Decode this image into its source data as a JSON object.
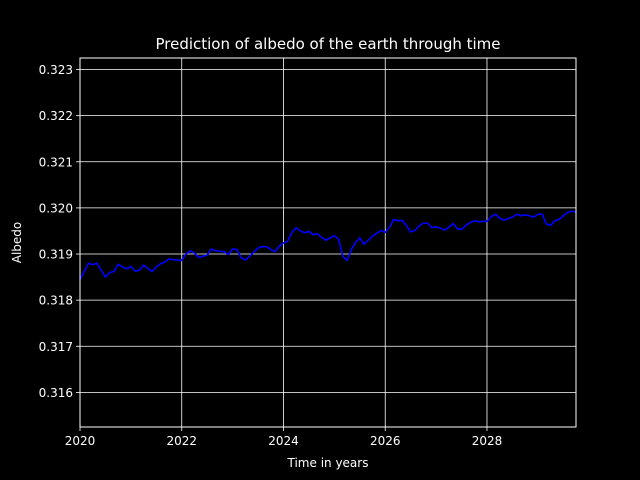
{
  "chart_data": {
    "type": "line",
    "title": "Prediction of albedo of the earth through time",
    "xlabel": "Time in years",
    "ylabel": "Albedo",
    "xlim": [
      2020,
      2029.75
    ],
    "ylim": [
      0.31525,
      0.32325
    ],
    "x_ticks": [
      2020,
      2022,
      2024,
      2026,
      2028
    ],
    "x_tick_labels": [
      "2020",
      "2022",
      "2024",
      "2026",
      "2028"
    ],
    "y_ticks": [
      0.316,
      0.317,
      0.318,
      0.319,
      0.32,
      0.321,
      0.322,
      0.323
    ],
    "y_tick_labels": [
      "0.316",
      "0.317",
      "0.318",
      "0.319",
      "0.320",
      "0.321",
      "0.322",
      "0.323"
    ],
    "grid": true,
    "background_color": "#000000",
    "line_color": "#0000ff",
    "series": [
      {
        "x": [
          2020.0,
          2020.083,
          2020.167,
          2020.25,
          2020.333,
          2020.417,
          2020.5,
          2020.583,
          2020.667,
          2020.75,
          2020.833,
          2020.917,
          2021.0,
          2021.083,
          2021.167,
          2021.25,
          2021.333,
          2021.417,
          2021.5,
          2021.583,
          2021.667,
          2021.75,
          2021.833,
          2021.917,
          2022.0,
          2022.083,
          2022.167,
          2022.25,
          2022.333,
          2022.417,
          2022.5,
          2022.583,
          2022.667,
          2022.75,
          2022.833,
          2022.917,
          2023.0,
          2023.083,
          2023.167,
          2023.25,
          2023.333,
          2023.417,
          2023.5,
          2023.583,
          2023.667,
          2023.75,
          2023.833,
          2023.917,
          2024.0,
          2024.083,
          2024.167,
          2024.25,
          2024.333,
          2024.417,
          2024.5,
          2024.583,
          2024.667,
          2024.75,
          2024.833,
          2024.917,
          2025.0,
          2025.083,
          2025.167,
          2025.25,
          2025.333,
          2025.417,
          2025.5,
          2025.583,
          2025.667,
          2025.75,
          2025.833,
          2025.917,
          2026.0,
          2026.083,
          2026.167,
          2026.25,
          2026.333,
          2026.417,
          2026.5,
          2026.583,
          2026.667,
          2026.75,
          2026.833,
          2026.917,
          2027.0,
          2027.083,
          2027.167,
          2027.25,
          2027.333,
          2027.417,
          2027.5,
          2027.583,
          2027.667,
          2027.75,
          2027.833,
          2027.917,
          2028.0,
          2028.083,
          2028.167,
          2028.25,
          2028.333,
          2028.417,
          2028.5,
          2028.583,
          2028.667,
          2028.75,
          2028.833,
          2028.917,
          2029.0,
          2029.083,
          2029.167,
          2029.25,
          2029.333,
          2029.417,
          2029.5,
          2029.583,
          2029.667,
          2029.75
        ],
        "values": [
          0.31845,
          0.31862,
          0.3188,
          0.31877,
          0.3188,
          0.31865,
          0.3185,
          0.3186,
          0.31862,
          0.31878,
          0.31872,
          0.31868,
          0.31873,
          0.31863,
          0.31865,
          0.31876,
          0.31869,
          0.31862,
          0.31872,
          0.31879,
          0.31883,
          0.31889,
          0.31888,
          0.31887,
          0.31886,
          0.319,
          0.31907,
          0.31902,
          0.31893,
          0.31895,
          0.31898,
          0.31911,
          0.31907,
          0.31906,
          0.31905,
          0.31899,
          0.31911,
          0.3191,
          0.31892,
          0.31887,
          0.31895,
          0.31904,
          0.31913,
          0.31916,
          0.31916,
          0.3191,
          0.31905,
          0.31917,
          0.31924,
          0.31928,
          0.31947,
          0.31957,
          0.3195,
          0.31946,
          0.31949,
          0.31942,
          0.31944,
          0.31936,
          0.3193,
          0.31935,
          0.3194,
          0.31932,
          0.31895,
          0.31886,
          0.3191,
          0.31925,
          0.31935,
          0.31921,
          0.3193,
          0.31939,
          0.31945,
          0.31951,
          0.31947,
          0.31958,
          0.31975,
          0.31972,
          0.31973,
          0.31962,
          0.31948,
          0.31951,
          0.31961,
          0.31967,
          0.31967,
          0.31957,
          0.31959,
          0.31956,
          0.31952,
          0.31958,
          0.31966,
          0.31955,
          0.31953,
          0.31962,
          0.31968,
          0.31972,
          0.3197,
          0.31971,
          0.31971,
          0.31981,
          0.31986,
          0.31978,
          0.31973,
          0.31977,
          0.3198,
          0.31986,
          0.31983,
          0.31985,
          0.31983,
          0.3198,
          0.31986,
          0.31987,
          0.31965,
          0.31962,
          0.31972,
          0.31975,
          0.31983,
          0.3199,
          0.31993,
          0.31991
        ]
      }
    ]
  }
}
